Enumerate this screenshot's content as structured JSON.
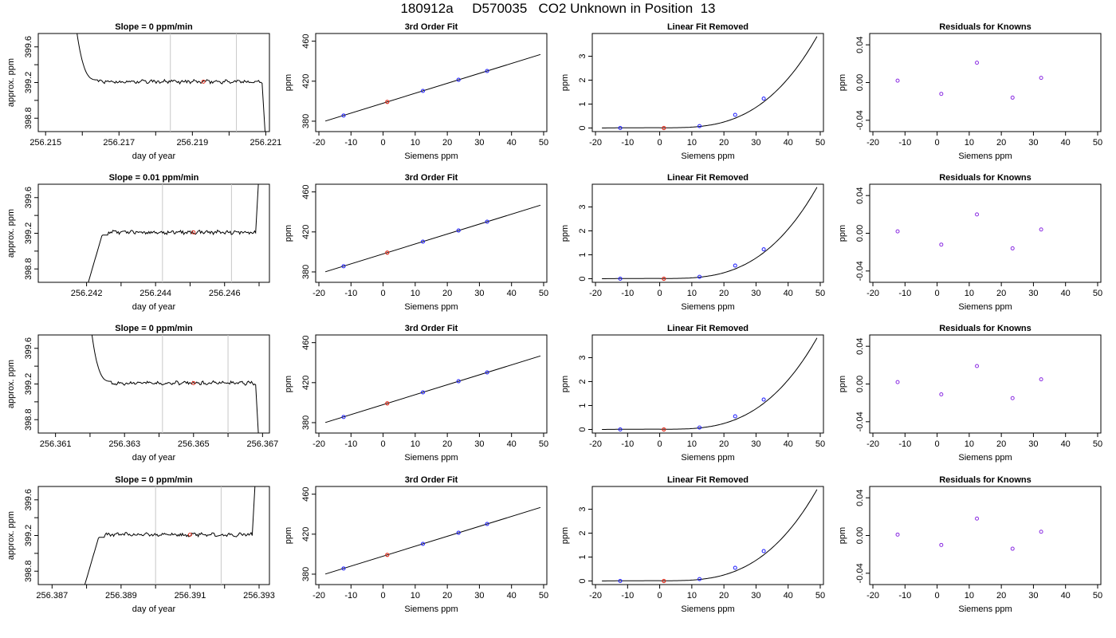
{
  "figure": {
    "title": "180912a     D570035   CO2 Unknown in Position  13"
  },
  "chart_data": [
    {
      "type": "line",
      "title": "Slope =  0  ppm/min",
      "xlabel": "day of year",
      "ylabel": "approx. ppm",
      "xlim": [
        256.2148,
        256.2211
      ],
      "ylim": [
        398.65,
        399.75
      ],
      "xticks": [
        "256.215",
        "256.217",
        "256.219",
        "256.221"
      ],
      "yticks": [
        "398.8",
        "399.2",
        "399.6"
      ],
      "vlines": [
        256.2184,
        256.2202
      ],
      "marker": {
        "x": 256.2193,
        "y": 399.21
      },
      "trace": {
        "start_x": 256.2162,
        "end_x": 256.2209,
        "level": 399.21,
        "lead_from": 399.75,
        "tail_to": 398.65
      }
    },
    {
      "type": "line",
      "title": "3rd Order Fit",
      "xlabel": "Siemens ppm",
      "ylabel": "ppm",
      "xlim": [
        -21,
        51
      ],
      "ylim": [
        369.6,
        467.7
      ],
      "xticks": [
        "-20",
        "-10",
        "0",
        "10",
        "20",
        "30",
        "40",
        "50"
      ],
      "yticks": [
        "380",
        "420",
        "460"
      ],
      "fit": {
        "from": -18,
        "to": 49,
        "intercept": 398,
        "slope": 0.994
      },
      "known_points": [
        [
          -12.3,
          385.7
        ],
        [
          12.4,
          410.3
        ],
        [
          23.5,
          421.4
        ],
        [
          32.4,
          430.2
        ]
      ],
      "unknown_point": [
        1.3,
        399.3
      ]
    },
    {
      "type": "line",
      "title": "Linear Fit Removed",
      "xlabel": "Siemens ppm",
      "ylabel": "ppm",
      "xlim": [
        -21,
        51
      ],
      "ylim": [
        -0.15,
        3.95
      ],
      "xticks": [
        "-20",
        "-10",
        "0",
        "10",
        "20",
        "30",
        "40",
        "50"
      ],
      "yticks": [
        "0",
        "1",
        "2",
        "3"
      ],
      "curve_max": 3.82,
      "known_points": [
        [
          -12.3,
          0.0
        ],
        [
          12.4,
          0.08
        ],
        [
          23.5,
          0.55
        ],
        [
          32.4,
          1.23
        ]
      ],
      "unknown_point": [
        1.3,
        0.0
      ]
    },
    {
      "type": "scatter",
      "title": "Residuals for Knowns",
      "xlabel": "Siemens ppm",
      "ylabel": "ppm",
      "xlim": [
        -21,
        51
      ],
      "ylim": [
        -0.052,
        0.052
      ],
      "xticks": [
        "-20",
        "-10",
        "0",
        "10",
        "20",
        "30",
        "40",
        "50"
      ],
      "yticks": [
        "-0.04",
        "0.00",
        "0.04"
      ],
      "points": [
        [
          -12.3,
          0.002
        ],
        [
          1.3,
          -0.012
        ],
        [
          12.4,
          0.021
        ],
        [
          23.5,
          -0.016
        ],
        [
          32.4,
          0.005
        ]
      ]
    },
    {
      "type": "line",
      "title": "Slope =  0.01  ppm/min",
      "xlabel": "day of year",
      "ylabel": "approx. ppm",
      "xlim": [
        256.2406,
        256.2473
      ],
      "ylim": [
        398.65,
        399.75
      ],
      "xticks": [
        "256.242",
        "256.244",
        "256.246"
      ],
      "yticks": [
        "398.8",
        "399.2",
        "399.6"
      ],
      "vlines": [
        256.2442,
        256.2462
      ],
      "marker": {
        "x": 256.2451,
        "y": 399.21
      },
      "trace": {
        "start_x": 256.2424,
        "end_x": 256.2469,
        "level": 399.21,
        "lead_from": 398.65,
        "tail_to": 399.75
      }
    },
    {
      "type": "line",
      "title": "3rd Order Fit",
      "xlabel": "Siemens ppm",
      "ylabel": "ppm",
      "xlim": [
        -21,
        51
      ],
      "ylim": [
        369.6,
        467.7
      ],
      "xticks": [
        "-20",
        "-10",
        "0",
        "10",
        "20",
        "30",
        "40",
        "50"
      ],
      "yticks": [
        "380",
        "420",
        "460"
      ],
      "fit": {
        "from": -18,
        "to": 49,
        "intercept": 398,
        "slope": 0.994
      },
      "known_points": [
        [
          -12.3,
          385.7
        ],
        [
          12.4,
          410.3
        ],
        [
          23.5,
          421.4
        ],
        [
          32.4,
          430.2
        ]
      ],
      "unknown_point": [
        1.3,
        399.3
      ]
    },
    {
      "type": "line",
      "title": "Linear Fit Removed",
      "xlabel": "Siemens ppm",
      "ylabel": "ppm",
      "xlim": [
        -21,
        51
      ],
      "ylim": [
        -0.15,
        3.95
      ],
      "xticks": [
        "-20",
        "-10",
        "0",
        "10",
        "20",
        "30",
        "40",
        "50"
      ],
      "yticks": [
        "0",
        "1",
        "2",
        "3"
      ],
      "curve_max": 3.82,
      "known_points": [
        [
          -12.3,
          0.0
        ],
        [
          12.4,
          0.08
        ],
        [
          23.5,
          0.55
        ],
        [
          32.4,
          1.23
        ]
      ],
      "unknown_point": [
        1.3,
        0.0
      ]
    },
    {
      "type": "scatter",
      "title": "Residuals for Knowns",
      "xlabel": "Siemens ppm",
      "ylabel": "ppm",
      "xlim": [
        -21,
        51
      ],
      "ylim": [
        -0.052,
        0.052
      ],
      "xticks": [
        "-20",
        "-10",
        "0",
        "10",
        "20",
        "30",
        "40",
        "50"
      ],
      "yticks": [
        "-0.04",
        "0.00",
        "0.04"
      ],
      "points": [
        [
          -12.3,
          0.002
        ],
        [
          1.3,
          -0.012
        ],
        [
          12.4,
          0.02
        ],
        [
          23.5,
          -0.016
        ],
        [
          32.4,
          0.004
        ]
      ]
    },
    {
      "type": "line",
      "title": "Slope =  0  ppm/min",
      "xlabel": "day of year",
      "ylabel": "approx. ppm",
      "xlim": [
        256.3605,
        256.3672
      ],
      "ylim": [
        398.65,
        399.75
      ],
      "xticks": [
        "256.361",
        "256.363",
        "256.365",
        "256.367"
      ],
      "yticks": [
        "398.8",
        "399.2",
        "399.6"
      ],
      "vlines": [
        256.3641,
        256.366
      ],
      "marker": {
        "x": 256.365,
        "y": 399.21
      },
      "trace": {
        "start_x": 256.3624,
        "end_x": 256.3668,
        "level": 399.21,
        "lead_from": 399.75,
        "tail_to": 398.65
      }
    },
    {
      "type": "line",
      "title": "3rd Order Fit",
      "xlabel": "Siemens ppm",
      "ylabel": "ppm",
      "xlim": [
        -21,
        51
      ],
      "ylim": [
        369.6,
        467.7
      ],
      "xticks": [
        "-20",
        "-10",
        "0",
        "10",
        "20",
        "30",
        "40",
        "50"
      ],
      "yticks": [
        "380",
        "420",
        "460"
      ],
      "fit": {
        "from": -18,
        "to": 49,
        "intercept": 398,
        "slope": 0.994
      },
      "known_points": [
        [
          -12.3,
          385.7
        ],
        [
          12.4,
          410.3
        ],
        [
          23.5,
          421.4
        ],
        [
          32.4,
          430.2
        ]
      ],
      "unknown_point": [
        1.3,
        399.3
      ]
    },
    {
      "type": "line",
      "title": "Linear Fit Removed",
      "xlabel": "Siemens ppm",
      "ylabel": "ppm",
      "xlim": [
        -21,
        51
      ],
      "ylim": [
        -0.15,
        3.95
      ],
      "xticks": [
        "-20",
        "-10",
        "0",
        "10",
        "20",
        "30",
        "40",
        "50"
      ],
      "yticks": [
        "0",
        "1",
        "2",
        "3"
      ],
      "curve_max": 3.82,
      "known_points": [
        [
          -12.3,
          0.0
        ],
        [
          12.4,
          0.08
        ],
        [
          23.5,
          0.55
        ],
        [
          32.4,
          1.25
        ]
      ],
      "unknown_point": [
        1.3,
        0.0
      ]
    },
    {
      "type": "scatter",
      "title": "Residuals for Knowns",
      "xlabel": "Siemens ppm",
      "ylabel": "ppm",
      "xlim": [
        -21,
        51
      ],
      "ylim": [
        -0.052,
        0.052
      ],
      "xticks": [
        "-20",
        "-10",
        "0",
        "10",
        "20",
        "30",
        "40",
        "50"
      ],
      "yticks": [
        "-0.04",
        "0.00",
        "0.04"
      ],
      "points": [
        [
          -12.3,
          0.002
        ],
        [
          1.3,
          -0.011
        ],
        [
          12.4,
          0.019
        ],
        [
          23.5,
          -0.015
        ],
        [
          32.4,
          0.005
        ]
      ]
    },
    {
      "type": "line",
      "title": "Slope =  0  ppm/min",
      "xlabel": "day of year",
      "ylabel": "approx. ppm",
      "xlim": [
        256.3866,
        256.3933
      ],
      "ylim": [
        398.65,
        399.75
      ],
      "xticks": [
        "256.387",
        "256.389",
        "256.391",
        "256.393"
      ],
      "yticks": [
        "398.8",
        "399.2",
        "399.6"
      ],
      "vlines": [
        256.39,
        256.3919
      ],
      "marker": {
        "x": 256.391,
        "y": 399.21
      },
      "trace": {
        "start_x": 256.3883,
        "end_x": 256.3928,
        "level": 399.21,
        "lead_from": 398.65,
        "tail_to": 399.75
      }
    },
    {
      "type": "line",
      "title": "3rd Order Fit",
      "xlabel": "Siemens ppm",
      "ylabel": "ppm",
      "xlim": [
        -21,
        51
      ],
      "ylim": [
        369.6,
        467.7
      ],
      "xticks": [
        "-20",
        "-10",
        "0",
        "10",
        "20",
        "30",
        "40",
        "50"
      ],
      "yticks": [
        "380",
        "420",
        "460"
      ],
      "fit": {
        "from": -18,
        "to": 49,
        "intercept": 398,
        "slope": 0.994
      },
      "known_points": [
        [
          -12.3,
          385.7
        ],
        [
          12.4,
          410.3
        ],
        [
          23.5,
          421.4
        ],
        [
          32.4,
          430.2
        ]
      ],
      "unknown_point": [
        1.3,
        399.3
      ]
    },
    {
      "type": "line",
      "title": "Linear Fit Removed",
      "xlabel": "Siemens ppm",
      "ylabel": "ppm",
      "xlim": [
        -21,
        51
      ],
      "ylim": [
        -0.15,
        3.95
      ],
      "xticks": [
        "-20",
        "-10",
        "0",
        "10",
        "20",
        "30",
        "40",
        "50"
      ],
      "yticks": [
        "0",
        "1",
        "2",
        "3"
      ],
      "curve_max": 3.82,
      "known_points": [
        [
          -12.3,
          0.0
        ],
        [
          12.4,
          0.08
        ],
        [
          23.5,
          0.55
        ],
        [
          32.4,
          1.25
        ]
      ],
      "unknown_point": [
        1.3,
        0.0
      ]
    },
    {
      "type": "scatter",
      "title": "Residuals for Knowns",
      "xlabel": "Siemens ppm",
      "ylabel": "ppm",
      "xlim": [
        -21,
        51
      ],
      "ylim": [
        -0.052,
        0.052
      ],
      "xticks": [
        "-20",
        "-10",
        "0",
        "10",
        "20",
        "30",
        "40",
        "50"
      ],
      "yticks": [
        "-0.04",
        "0.00",
        "0.04"
      ],
      "points": [
        [
          -12.3,
          0.001
        ],
        [
          1.3,
          -0.01
        ],
        [
          12.4,
          0.018
        ],
        [
          23.5,
          -0.014
        ],
        [
          32.4,
          0.004
        ]
      ]
    }
  ],
  "colors": {
    "line": "#000000",
    "reference_line": "#c8c8c8",
    "unknown_marker": "#e03020",
    "known_marker": "#1a1aff",
    "residual_marker": "#8a2be2"
  }
}
